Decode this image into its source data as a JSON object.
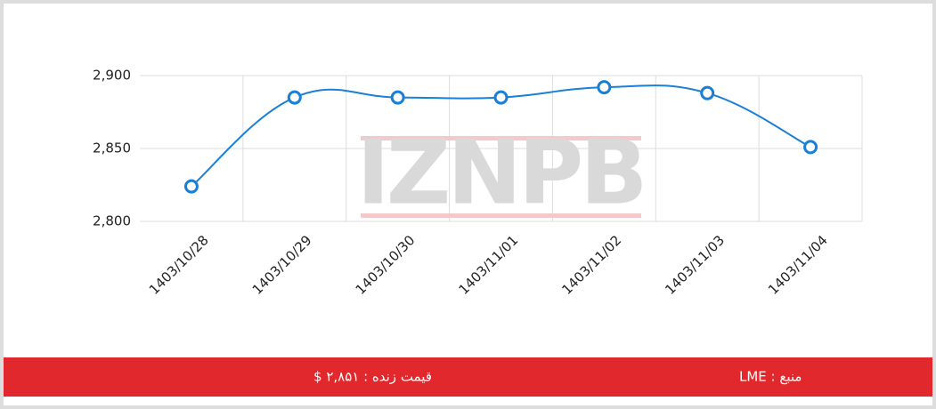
{
  "chart_data": {
    "type": "line",
    "watermark": "IZNPB",
    "categories": [
      "1403/10/28",
      "1403/10/29",
      "1403/10/30",
      "1403/11/01",
      "1403/11/02",
      "1403/11/03",
      "1403/11/04"
    ],
    "values": [
      2824,
      2885,
      2885,
      2885,
      2892,
      2888,
      2851
    ],
    "color": "#1a7fd6",
    "ylim": [
      2800,
      2900
    ],
    "yticks": [
      {
        "value": 2800,
        "label": "2,800"
      },
      {
        "value": 2850,
        "label": "2,850"
      },
      {
        "value": 2900,
        "label": "2,900"
      }
    ],
    "grid": true
  },
  "footer": {
    "price": "قیمت زنده : ۲,۸۵۱ $",
    "source": "منبع : LME"
  }
}
